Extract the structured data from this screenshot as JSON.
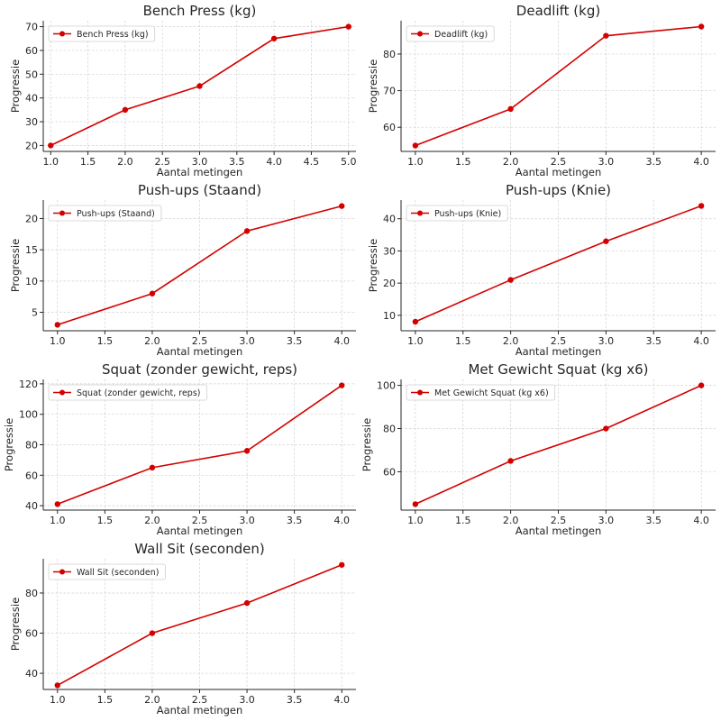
{
  "series_color": "#d40000",
  "chart_data": [
    {
      "type": "line",
      "title": "Bench Press (kg)",
      "xlabel": "Aantal metingen",
      "ylabel": "Progressie",
      "legend_placement": "top-left",
      "grid": true,
      "xlim": [
        0.9,
        5.1
      ],
      "ylim": [
        17.5,
        72.5
      ],
      "xticks": [
        1.0,
        1.5,
        2.0,
        2.5,
        3.0,
        3.5,
        4.0,
        4.5,
        5.0
      ],
      "xtick_labels": [
        "1.0",
        "1.5",
        "2.0",
        "2.5",
        "3.0",
        "3.5",
        "4.0",
        "4.5",
        "5.0"
      ],
      "yticks": [
        20,
        30,
        40,
        50,
        60,
        70
      ],
      "ytick_labels": [
        "20",
        "30",
        "40",
        "50",
        "60",
        "70"
      ],
      "series": [
        {
          "name": "Bench Press (kg)",
          "x": [
            1,
            2,
            3,
            4,
            5
          ],
          "y": [
            20,
            35,
            45,
            65,
            70
          ]
        }
      ]
    },
    {
      "type": "line",
      "title": "Deadlift (kg)",
      "xlabel": "Aantal metingen",
      "ylabel": "Progressie",
      "legend_placement": "top-left",
      "grid": true,
      "xlim": [
        0.85,
        4.15
      ],
      "ylim": [
        53.4,
        89.1
      ],
      "xticks": [
        1.0,
        1.5,
        2.0,
        2.5,
        3.0,
        3.5,
        4.0
      ],
      "xtick_labels": [
        "1.0",
        "1.5",
        "2.0",
        "2.5",
        "3.0",
        "3.5",
        "4.0"
      ],
      "yticks": [
        60,
        70,
        80
      ],
      "ytick_labels": [
        "60",
        "70",
        "80"
      ],
      "series": [
        {
          "name": "Deadlift (kg)",
          "x": [
            1,
            2,
            3,
            4
          ],
          "y": [
            55,
            65,
            85,
            87.5
          ]
        }
      ]
    },
    {
      "type": "line",
      "title": "Push-ups (Staand)",
      "xlabel": "Aantal metingen",
      "ylabel": "Progressie",
      "legend_placement": "top-left",
      "grid": true,
      "xlim": [
        0.85,
        4.15
      ],
      "ylim": [
        2.05,
        22.95
      ],
      "xticks": [
        1.0,
        1.5,
        2.0,
        2.5,
        3.0,
        3.5,
        4.0
      ],
      "xtick_labels": [
        "1.0",
        "1.5",
        "2.0",
        "2.5",
        "3.0",
        "3.5",
        "4.0"
      ],
      "yticks": [
        5,
        10,
        15,
        20
      ],
      "ytick_labels": [
        "5",
        "10",
        "15",
        "20"
      ],
      "series": [
        {
          "name": "Push-ups (Staand)",
          "x": [
            1,
            2,
            3,
            4
          ],
          "y": [
            3,
            8,
            18,
            22
          ]
        }
      ]
    },
    {
      "type": "line",
      "title": "Push-ups (Knie)",
      "xlabel": "Aantal metingen",
      "ylabel": "Progressie",
      "legend_placement": "top-left",
      "grid": true,
      "xlim": [
        0.85,
        4.15
      ],
      "ylim": [
        5.2,
        45.8
      ],
      "xticks": [
        1.0,
        1.5,
        2.0,
        2.5,
        3.0,
        3.5,
        4.0
      ],
      "xtick_labels": [
        "1.0",
        "1.5",
        "2.0",
        "2.5",
        "3.0",
        "3.5",
        "4.0"
      ],
      "yticks": [
        10,
        20,
        30,
        40
      ],
      "ytick_labels": [
        "10",
        "20",
        "30",
        "40"
      ],
      "series": [
        {
          "name": "Push-ups (Knie)",
          "x": [
            1,
            2,
            3,
            4
          ],
          "y": [
            8,
            21,
            33,
            44
          ]
        }
      ]
    },
    {
      "type": "line",
      "title": "Squat (zonder gewicht, reps)",
      "xlabel": "Aantal metingen",
      "ylabel": "Progressie",
      "legend_placement": "top-left",
      "grid": true,
      "xlim": [
        0.85,
        4.15
      ],
      "ylim": [
        37.1,
        122.9
      ],
      "xticks": [
        1.0,
        1.5,
        2.0,
        2.5,
        3.0,
        3.5,
        4.0
      ],
      "xtick_labels": [
        "1.0",
        "1.5",
        "2.0",
        "2.5",
        "3.0",
        "3.5",
        "4.0"
      ],
      "yticks": [
        40,
        60,
        80,
        100,
        120
      ],
      "ytick_labels": [
        "40",
        "60",
        "80",
        "100",
        "120"
      ],
      "series": [
        {
          "name": "Squat (zonder gewicht, reps)",
          "x": [
            1,
            2,
            3,
            4
          ],
          "y": [
            41,
            65,
            76,
            119
          ]
        }
      ]
    },
    {
      "type": "line",
      "title": "Met Gewicht Squat (kg x6)",
      "xlabel": "Aantal metingen",
      "ylabel": "Progressie",
      "legend_placement": "top-left",
      "grid": true,
      "xlim": [
        0.85,
        4.15
      ],
      "ylim": [
        42.25,
        102.75
      ],
      "xticks": [
        1.0,
        1.5,
        2.0,
        2.5,
        3.0,
        3.5,
        4.0
      ],
      "xtick_labels": [
        "1.0",
        "1.5",
        "2.0",
        "2.5",
        "3.0",
        "3.5",
        "4.0"
      ],
      "yticks": [
        60,
        80,
        100
      ],
      "ytick_labels": [
        "60",
        "80",
        "100"
      ],
      "series": [
        {
          "name": "Met Gewicht Squat (kg x6)",
          "x": [
            1,
            2,
            3,
            4
          ],
          "y": [
            45,
            65,
            80,
            100
          ]
        }
      ]
    },
    {
      "type": "line",
      "title": "Wall Sit (seconden)",
      "xlabel": "Aantal metingen",
      "ylabel": "Progressie",
      "legend_placement": "top-left",
      "grid": true,
      "xlim": [
        0.85,
        4.15
      ],
      "ylim": [
        31.95,
        97.05
      ],
      "xticks": [
        1.0,
        1.5,
        2.0,
        2.5,
        3.0,
        3.5,
        4.0
      ],
      "xtick_labels": [
        "1.0",
        "1.5",
        "2.0",
        "2.5",
        "3.0",
        "3.5",
        "4.0"
      ],
      "yticks": [
        40,
        60,
        80
      ],
      "ytick_labels": [
        "40",
        "60",
        "80"
      ],
      "series": [
        {
          "name": "Wall Sit (seconden)",
          "x": [
            1,
            2,
            3,
            4
          ],
          "y": [
            34,
            60,
            75,
            94
          ]
        }
      ]
    }
  ]
}
